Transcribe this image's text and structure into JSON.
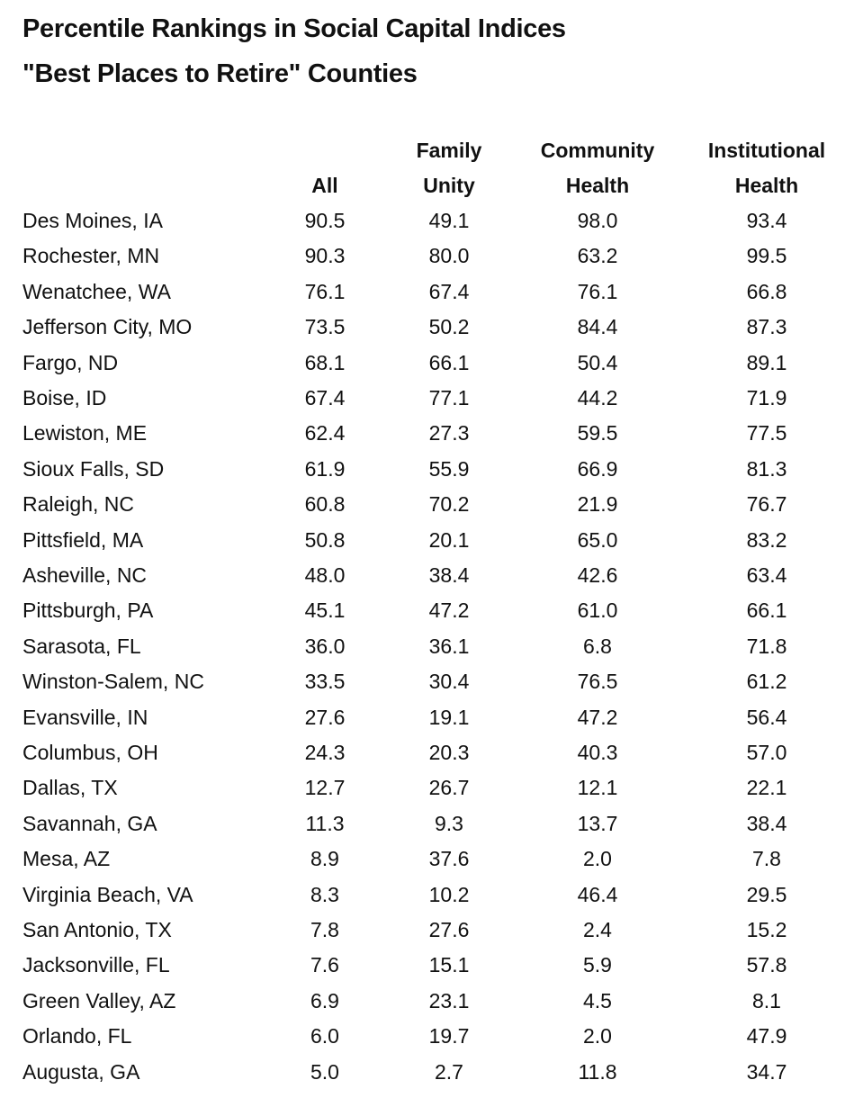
{
  "title_line1": "Percentile Rankings in Social Capital Indices",
  "title_line2": "\"Best Places to Retire\" Counties",
  "columns": [
    {
      "line1": "",
      "line2": "All"
    },
    {
      "line1": "Family",
      "line2": "Unity"
    },
    {
      "line1": "Community",
      "line2": "Health"
    },
    {
      "line1": "Institutional",
      "line2": "Health"
    }
  ],
  "rows": [
    {
      "name": "Des Moines, IA",
      "values": [
        "90.5",
        "49.1",
        "98.0",
        "93.4"
      ]
    },
    {
      "name": "Rochester, MN",
      "values": [
        "90.3",
        "80.0",
        "63.2",
        "99.5"
      ]
    },
    {
      "name": "Wenatchee, WA",
      "values": [
        "76.1",
        "67.4",
        "76.1",
        "66.8"
      ]
    },
    {
      "name": "Jefferson City, MO",
      "values": [
        "73.5",
        "50.2",
        "84.4",
        "87.3"
      ]
    },
    {
      "name": "Fargo, ND",
      "values": [
        "68.1",
        "66.1",
        "50.4",
        "89.1"
      ]
    },
    {
      "name": "Boise, ID",
      "values": [
        "67.4",
        "77.1",
        "44.2",
        "71.9"
      ]
    },
    {
      "name": "Lewiston, ME",
      "values": [
        "62.4",
        "27.3",
        "59.5",
        "77.5"
      ]
    },
    {
      "name": "Sioux Falls, SD",
      "values": [
        "61.9",
        "55.9",
        "66.9",
        "81.3"
      ]
    },
    {
      "name": "Raleigh, NC",
      "values": [
        "60.8",
        "70.2",
        "21.9",
        "76.7"
      ]
    },
    {
      "name": "Pittsfield, MA",
      "values": [
        "50.8",
        "20.1",
        "65.0",
        "83.2"
      ]
    },
    {
      "name": "Asheville, NC",
      "values": [
        "48.0",
        "38.4",
        "42.6",
        "63.4"
      ]
    },
    {
      "name": "Pittsburgh, PA",
      "values": [
        "45.1",
        "47.2",
        "61.0",
        "66.1"
      ]
    },
    {
      "name": "Sarasota, FL",
      "values": [
        "36.0",
        "36.1",
        "6.8",
        "71.8"
      ]
    },
    {
      "name": "Winston-Salem, NC",
      "values": [
        "33.5",
        "30.4",
        "76.5",
        "61.2"
      ]
    },
    {
      "name": "Evansville, IN",
      "values": [
        "27.6",
        "19.1",
        "47.2",
        "56.4"
      ]
    },
    {
      "name": "Columbus, OH",
      "values": [
        "24.3",
        "20.3",
        "40.3",
        "57.0"
      ]
    },
    {
      "name": "Dallas, TX",
      "values": [
        "12.7",
        "26.7",
        "12.1",
        "22.1"
      ]
    },
    {
      "name": "Savannah, GA",
      "values": [
        "11.3",
        "9.3",
        "13.7",
        "38.4"
      ]
    },
    {
      "name": "Mesa, AZ",
      "values": [
        "8.9",
        "37.6",
        "2.0",
        "7.8"
      ]
    },
    {
      "name": "Virginia Beach, VA",
      "values": [
        "8.3",
        "10.2",
        "46.4",
        "29.5"
      ]
    },
    {
      "name": "San Antonio, TX",
      "values": [
        "7.8",
        "27.6",
        "2.4",
        "15.2"
      ]
    },
    {
      "name": "Jacksonville, FL",
      "values": [
        "7.6",
        "15.1",
        "5.9",
        "57.8"
      ]
    },
    {
      "name": "Green Valley, AZ",
      "values": [
        "6.9",
        "23.1",
        "4.5",
        "8.1"
      ]
    },
    {
      "name": "Orlando, FL",
      "values": [
        "6.0",
        "19.7",
        "2.0",
        "47.9"
      ]
    },
    {
      "name": "Augusta, GA",
      "values": [
        "5.0",
        "2.7",
        "11.8",
        "34.7"
      ]
    }
  ]
}
